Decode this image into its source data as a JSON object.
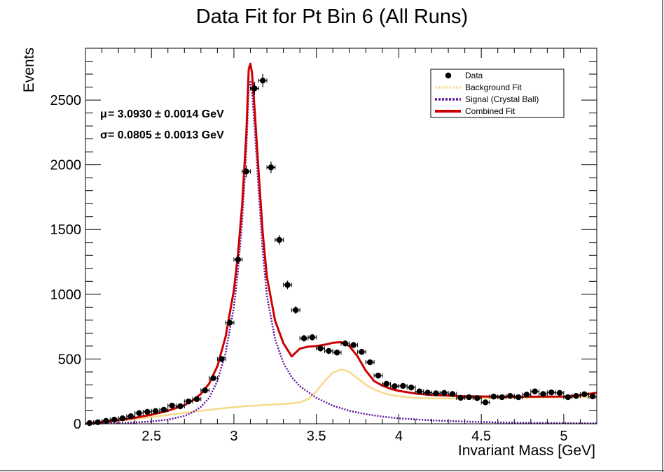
{
  "chart_data": {
    "type": "scatter",
    "title": "Data Fit for Pt Bin 6 (All Runs)",
    "xlabel": "Invariant Mass [GeV]",
    "ylabel": "Events",
    "xlim": [
      2.1,
      5.2
    ],
    "ylim": [
      0,
      2900
    ],
    "x_ticks": [
      2.5,
      3,
      3.5,
      4,
      4.5,
      5
    ],
    "x_tick_labels": [
      "2.5",
      "3",
      "3.5",
      "4",
      "4.5",
      "5"
    ],
    "y_ticks": [
      0,
      500,
      1000,
      1500,
      2000,
      2500
    ],
    "y_tick_labels": [
      "0",
      "500",
      "1000",
      "1500",
      "2000",
      "2500"
    ],
    "legend_position": "top-right",
    "annotations": [
      {
        "symbol": "μ",
        "text": " = 3.0930 ± 0.0014 GeV"
      },
      {
        "symbol": "σ",
        "text": " = 0.0805 ± 0.0013 GeV"
      }
    ],
    "series": [
      {
        "name": "Data",
        "kind": "points_with_errors",
        "color": "#000000",
        "x_error": 0.025,
        "points": [
          [
            2.125,
            5
          ],
          [
            2.175,
            12
          ],
          [
            2.225,
            22
          ],
          [
            2.275,
            32
          ],
          [
            2.325,
            42
          ],
          [
            2.375,
            58
          ],
          [
            2.425,
            82
          ],
          [
            2.475,
            92
          ],
          [
            2.525,
            98
          ],
          [
            2.575,
            108
          ],
          [
            2.625,
            140
          ],
          [
            2.675,
            135
          ],
          [
            2.725,
            172
          ],
          [
            2.775,
            190
          ],
          [
            2.825,
            258
          ],
          [
            2.875,
            352
          ],
          [
            2.925,
            500
          ],
          [
            2.975,
            780
          ],
          [
            3.025,
            1268
          ],
          [
            3.075,
            1948
          ],
          [
            3.125,
            2590
          ],
          [
            3.175,
            2650
          ],
          [
            3.225,
            1980
          ],
          [
            3.275,
            1420
          ],
          [
            3.325,
            1072
          ],
          [
            3.375,
            878
          ],
          [
            3.425,
            660
          ],
          [
            3.475,
            668
          ],
          [
            3.525,
            582
          ],
          [
            3.575,
            562
          ],
          [
            3.625,
            550
          ],
          [
            3.675,
            620
          ],
          [
            3.725,
            608
          ],
          [
            3.775,
            555
          ],
          [
            3.825,
            475
          ],
          [
            3.875,
            372
          ],
          [
            3.925,
            308
          ],
          [
            3.975,
            290
          ],
          [
            4.025,
            292
          ],
          [
            4.075,
            280
          ],
          [
            4.125,
            250
          ],
          [
            4.175,
            240
          ],
          [
            4.225,
            235
          ],
          [
            4.275,
            238
          ],
          [
            4.325,
            230
          ],
          [
            4.375,
            200
          ],
          [
            4.425,
            205
          ],
          [
            4.475,
            198
          ],
          [
            4.525,
            165
          ],
          [
            4.575,
            210
          ],
          [
            4.625,
            205
          ],
          [
            4.675,
            215
          ],
          [
            4.725,
            205
          ],
          [
            4.775,
            225
          ],
          [
            4.825,
            250
          ],
          [
            4.875,
            230
          ],
          [
            4.925,
            242
          ],
          [
            4.975,
            238
          ],
          [
            5.025,
            205
          ],
          [
            5.075,
            215
          ],
          [
            5.125,
            228
          ],
          [
            5.175,
            212
          ]
        ]
      },
      {
        "name": "Background Fit",
        "kind": "line",
        "color": "#f8d98a",
        "points": [
          [
            2.1,
            0
          ],
          [
            2.2,
            10
          ],
          [
            2.3,
            22
          ],
          [
            2.4,
            36
          ],
          [
            2.5,
            52
          ],
          [
            2.6,
            68
          ],
          [
            2.7,
            84
          ],
          [
            2.8,
            100
          ],
          [
            2.9,
            115
          ],
          [
            3.0,
            128
          ],
          [
            3.1,
            138
          ],
          [
            3.2,
            146
          ],
          [
            3.3,
            153
          ],
          [
            3.35,
            157
          ],
          [
            3.4,
            166
          ],
          [
            3.45,
            190
          ],
          [
            3.5,
            250
          ],
          [
            3.55,
            330
          ],
          [
            3.6,
            395
          ],
          [
            3.65,
            420
          ],
          [
            3.7,
            400
          ],
          [
            3.75,
            350
          ],
          [
            3.8,
            300
          ],
          [
            3.85,
            265
          ],
          [
            3.9,
            240
          ],
          [
            3.95,
            222
          ],
          [
            4.0,
            212
          ],
          [
            4.1,
            200
          ],
          [
            4.2,
            196
          ],
          [
            4.4,
            195
          ],
          [
            4.6,
            198
          ],
          [
            4.8,
            202
          ],
          [
            5.0,
            205
          ],
          [
            5.2,
            208
          ]
        ]
      },
      {
        "name": "Signal (Crystal Ball)",
        "kind": "line",
        "color": "#5a0fa0",
        "points": [
          [
            2.1,
            0
          ],
          [
            2.2,
            2
          ],
          [
            2.3,
            5
          ],
          [
            2.4,
            10
          ],
          [
            2.5,
            18
          ],
          [
            2.6,
            32
          ],
          [
            2.7,
            60
          ],
          [
            2.75,
            88
          ],
          [
            2.8,
            130
          ],
          [
            2.85,
            200
          ],
          [
            2.9,
            330
          ],
          [
            2.95,
            550
          ],
          [
            3.0,
            900
          ],
          [
            3.025,
            1180
          ],
          [
            3.05,
            1560
          ],
          [
            3.075,
            2100
          ],
          [
            3.09,
            2600
          ],
          [
            3.1,
            2640
          ],
          [
            3.11,
            2570
          ],
          [
            3.125,
            2300
          ],
          [
            3.15,
            1800
          ],
          [
            3.175,
            1330
          ],
          [
            3.2,
            990
          ],
          [
            3.25,
            650
          ],
          [
            3.3,
            470
          ],
          [
            3.35,
            360
          ],
          [
            3.4,
            290
          ],
          [
            3.5,
            200
          ],
          [
            3.6,
            140
          ],
          [
            3.7,
            100
          ],
          [
            3.8,
            74
          ],
          [
            3.9,
            55
          ],
          [
            4.0,
            42
          ],
          [
            4.2,
            26
          ],
          [
            4.4,
            17
          ],
          [
            4.6,
            11
          ],
          [
            4.8,
            7
          ],
          [
            5.0,
            5
          ],
          [
            5.2,
            3
          ]
        ]
      },
      {
        "name": "Combined Fit",
        "kind": "line",
        "color": "#cc0000",
        "points": [
          [
            2.1,
            0
          ],
          [
            2.2,
            12
          ],
          [
            2.3,
            27
          ],
          [
            2.4,
            46
          ],
          [
            2.5,
            70
          ],
          [
            2.6,
            100
          ],
          [
            2.7,
            144
          ],
          [
            2.75,
            180
          ],
          [
            2.8,
            230
          ],
          [
            2.85,
            310
          ],
          [
            2.9,
            445
          ],
          [
            2.95,
            675
          ],
          [
            3.0,
            1030
          ],
          [
            3.025,
            1310
          ],
          [
            3.05,
            1690
          ],
          [
            3.075,
            2230
          ],
          [
            3.09,
            2740
          ],
          [
            3.1,
            2780
          ],
          [
            3.11,
            2710
          ],
          [
            3.125,
            2440
          ],
          [
            3.15,
            1940
          ],
          [
            3.175,
            1475
          ],
          [
            3.2,
            1136
          ],
          [
            3.25,
            795
          ],
          [
            3.3,
            622
          ],
          [
            3.35,
            520
          ],
          [
            3.4,
            580
          ],
          [
            3.45,
            595
          ],
          [
            3.5,
            600
          ],
          [
            3.55,
            610
          ],
          [
            3.6,
            625
          ],
          [
            3.65,
            630
          ],
          [
            3.7,
            600
          ],
          [
            3.75,
            520
          ],
          [
            3.8,
            410
          ],
          [
            3.85,
            330
          ],
          [
            3.9,
            295
          ],
          [
            3.95,
            270
          ],
          [
            4.0,
            254
          ],
          [
            4.1,
            234
          ],
          [
            4.2,
            222
          ],
          [
            4.4,
            212
          ],
          [
            4.6,
            209
          ],
          [
            4.8,
            209
          ],
          [
            5.0,
            210
          ],
          [
            5.1,
            220
          ],
          [
            5.2,
            240
          ]
        ]
      }
    ]
  }
}
